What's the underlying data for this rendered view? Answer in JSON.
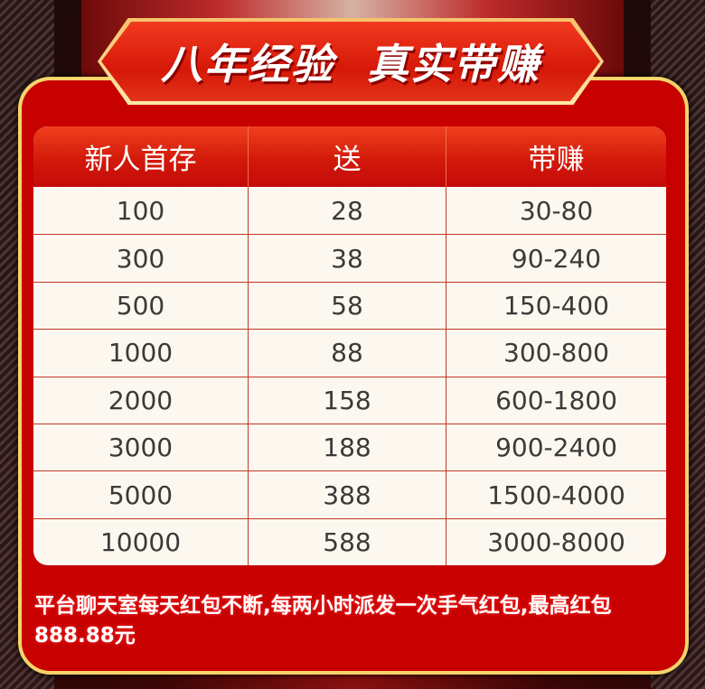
{
  "banner": {
    "title": "八年经验  真实带赚"
  },
  "table": {
    "headers": [
      "新人首存",
      "送",
      "带赚"
    ],
    "rows": [
      [
        "100",
        "28",
        "30-80"
      ],
      [
        "300",
        "38",
        "90-240"
      ],
      [
        "500",
        "58",
        "150-400"
      ],
      [
        "1000",
        "88",
        "300-800"
      ],
      [
        "2000",
        "158",
        "600-1800"
      ],
      [
        "3000",
        "188",
        "900-2400"
      ],
      [
        "5000",
        "388",
        "1500-4000"
      ],
      [
        "10000",
        "588",
        "3000-8000"
      ]
    ]
  },
  "note": "平台聊天室每天红包不断,每两小时派发一次手气红包,最高红包888.88元",
  "colors": {
    "panel": "#c70000",
    "border": "#f6d46a",
    "table_bg": "#fdf8ef"
  }
}
